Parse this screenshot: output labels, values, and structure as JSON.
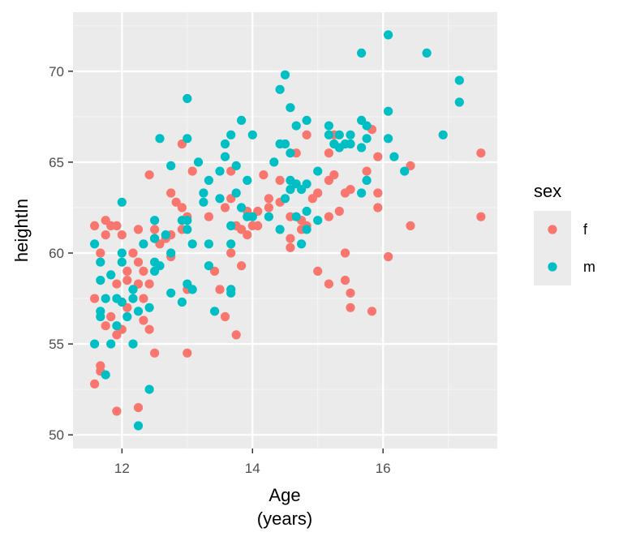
{
  "chart_data": {
    "type": "scatter",
    "xlabel": [
      "Age",
      "(years)"
    ],
    "ylabel": "heightIn",
    "xlim": [
      11.25,
      17.75
    ],
    "ylim": [
      49.25,
      73.25
    ],
    "x_ticks": [
      12,
      14,
      16
    ],
    "y_ticks": [
      50,
      55,
      60,
      65,
      70
    ],
    "grid": true,
    "legend": {
      "title": "sex",
      "position": "right"
    },
    "series": [
      {
        "name": "f",
        "color": "#F8766D",
        "points": [
          [
            11.58,
            52.8
          ],
          [
            11.58,
            57.5
          ],
          [
            11.58,
            61.5
          ],
          [
            11.67,
            53.5
          ],
          [
            11.67,
            53.8
          ],
          [
            11.67,
            60.0
          ],
          [
            11.75,
            56.0
          ],
          [
            11.75,
            61.0
          ],
          [
            11.75,
            61.8
          ],
          [
            11.83,
            56.5
          ],
          [
            11.83,
            61.5
          ],
          [
            11.92,
            51.3
          ],
          [
            11.92,
            55.5
          ],
          [
            11.92,
            58.3
          ],
          [
            11.92,
            61.5
          ],
          [
            12.0,
            55.8
          ],
          [
            12.0,
            61.0
          ],
          [
            12.08,
            57.0
          ],
          [
            12.08,
            58.5
          ],
          [
            12.08,
            59.0
          ],
          [
            12.17,
            60.0
          ],
          [
            12.25,
            51.5
          ],
          [
            12.25,
            58.3
          ],
          [
            12.25,
            59.5
          ],
          [
            12.25,
            61.3
          ],
          [
            12.33,
            56.3
          ],
          [
            12.33,
            57.5
          ],
          [
            12.33,
            59.0
          ],
          [
            12.42,
            55.8
          ],
          [
            12.42,
            58.3
          ],
          [
            12.42,
            64.3
          ],
          [
            12.5,
            54.5
          ],
          [
            12.5,
            60.8
          ],
          [
            12.5,
            61.3
          ],
          [
            12.58,
            60.5
          ],
          [
            12.67,
            60.8
          ],
          [
            12.75,
            59.8
          ],
          [
            12.75,
            61.0
          ],
          [
            12.75,
            63.3
          ],
          [
            12.83,
            62.8
          ],
          [
            12.92,
            61.3
          ],
          [
            12.92,
            62.5
          ],
          [
            12.92,
            66.0
          ],
          [
            13.0,
            54.5
          ],
          [
            13.0,
            58.0
          ],
          [
            13.0,
            62.0
          ],
          [
            13.08,
            64.5
          ],
          [
            13.33,
            62.0
          ],
          [
            13.42,
            59.0
          ],
          [
            13.5,
            58.0
          ],
          [
            13.58,
            56.5
          ],
          [
            13.58,
            62.5
          ],
          [
            13.67,
            60.0
          ],
          [
            13.67,
            63.0
          ],
          [
            13.67,
            64.5
          ],
          [
            13.75,
            55.5
          ],
          [
            13.75,
            61.5
          ],
          [
            13.83,
            59.3
          ],
          [
            13.83,
            61.3
          ],
          [
            13.92,
            61.0
          ],
          [
            13.92,
            62.3
          ],
          [
            14.0,
            61.5
          ],
          [
            14.08,
            61.5
          ],
          [
            14.08,
            62.3
          ],
          [
            14.17,
            64.3
          ],
          [
            14.25,
            62.5
          ],
          [
            14.25,
            63.0
          ],
          [
            14.42,
            62.8
          ],
          [
            14.42,
            64.0
          ],
          [
            14.58,
            60.3
          ],
          [
            14.58,
            60.8
          ],
          [
            14.58,
            62.0
          ],
          [
            14.67,
            65.5
          ],
          [
            14.75,
            61.3
          ],
          [
            14.75,
            61.8
          ],
          [
            14.83,
            61.5
          ],
          [
            14.83,
            66.5
          ],
          [
            14.92,
            63.0
          ],
          [
            15.0,
            59.0
          ],
          [
            15.0,
            63.3
          ],
          [
            15.17,
            58.3
          ],
          [
            15.17,
            62.0
          ],
          [
            15.17,
            64.0
          ],
          [
            15.17,
            65.5
          ],
          [
            15.25,
            64.3
          ],
          [
            15.25,
            66.5
          ],
          [
            15.33,
            62.3
          ],
          [
            15.42,
            58.5
          ],
          [
            15.42,
            60.0
          ],
          [
            15.42,
            63.3
          ],
          [
            15.5,
            57.0
          ],
          [
            15.5,
            57.8
          ],
          [
            15.5,
            63.5
          ],
          [
            15.75,
            64.5
          ],
          [
            15.83,
            56.8
          ],
          [
            15.83,
            66.8
          ],
          [
            15.92,
            62.5
          ],
          [
            15.92,
            63.3
          ],
          [
            15.92,
            65.3
          ],
          [
            16.08,
            59.8
          ],
          [
            16.42,
            61.5
          ],
          [
            16.42,
            64.8
          ],
          [
            17.5,
            62.0
          ],
          [
            17.5,
            65.5
          ]
        ]
      },
      {
        "name": "m",
        "color": "#00BFC4",
        "points": [
          [
            11.58,
            55.0
          ],
          [
            11.58,
            60.5
          ],
          [
            11.67,
            56.5
          ],
          [
            11.67,
            56.8
          ],
          [
            11.67,
            58.5
          ],
          [
            11.67,
            59.5
          ],
          [
            11.75,
            53.3
          ],
          [
            11.75,
            57.5
          ],
          [
            11.83,
            55.0
          ],
          [
            11.83,
            58.8
          ],
          [
            11.92,
            56.0
          ],
          [
            11.92,
            57.5
          ],
          [
            12.0,
            57.3
          ],
          [
            12.0,
            59.5
          ],
          [
            12.0,
            60.0
          ],
          [
            12.0,
            62.8
          ],
          [
            12.08,
            56.5
          ],
          [
            12.17,
            55.0
          ],
          [
            12.17,
            57.5
          ],
          [
            12.17,
            58.0
          ],
          [
            12.25,
            50.5
          ],
          [
            12.25,
            56.8
          ],
          [
            12.33,
            60.5
          ],
          [
            12.42,
            52.5
          ],
          [
            12.42,
            57.0
          ],
          [
            12.5,
            59.0
          ],
          [
            12.5,
            59.5
          ],
          [
            12.5,
            60.8
          ],
          [
            12.5,
            61.8
          ],
          [
            12.58,
            59.3
          ],
          [
            12.58,
            66.3
          ],
          [
            12.67,
            61.0
          ],
          [
            12.75,
            57.8
          ],
          [
            12.75,
            60.0
          ],
          [
            12.75,
            64.8
          ],
          [
            12.92,
            57.3
          ],
          [
            12.92,
            61.8
          ],
          [
            13.0,
            58.3
          ],
          [
            13.0,
            61.3
          ],
          [
            13.0,
            61.8
          ],
          [
            13.0,
            66.3
          ],
          [
            13.0,
            68.5
          ],
          [
            13.08,
            58.0
          ],
          [
            13.08,
            60.5
          ],
          [
            13.17,
            65.0
          ],
          [
            13.25,
            62.8
          ],
          [
            13.25,
            63.3
          ],
          [
            13.33,
            59.3
          ],
          [
            13.33,
            60.5
          ],
          [
            13.33,
            64.0
          ],
          [
            13.42,
            56.8
          ],
          [
            13.5,
            63.0
          ],
          [
            13.5,
            64.5
          ],
          [
            13.58,
            65.3
          ],
          [
            13.58,
            66.0
          ],
          [
            13.67,
            57.8
          ],
          [
            13.67,
            58.0
          ],
          [
            13.67,
            60.5
          ],
          [
            13.67,
            61.5
          ],
          [
            13.67,
            66.5
          ],
          [
            13.75,
            63.3
          ],
          [
            13.75,
            64.8
          ],
          [
            13.83,
            62.5
          ],
          [
            13.83,
            67.3
          ],
          [
            13.92,
            62.0
          ],
          [
            13.92,
            64.0
          ],
          [
            14.0,
            62.0
          ],
          [
            14.0,
            66.5
          ],
          [
            14.25,
            62.0
          ],
          [
            14.33,
            65.0
          ],
          [
            14.42,
            61.3
          ],
          [
            14.42,
            66.0
          ],
          [
            14.42,
            69.0
          ],
          [
            14.5,
            63.0
          ],
          [
            14.5,
            66.0
          ],
          [
            14.5,
            69.8
          ],
          [
            14.58,
            63.5
          ],
          [
            14.58,
            64.0
          ],
          [
            14.58,
            65.5
          ],
          [
            14.58,
            68.0
          ],
          [
            14.67,
            62.0
          ],
          [
            14.67,
            63.8
          ],
          [
            14.67,
            67.0
          ],
          [
            14.75,
            60.5
          ],
          [
            14.75,
            63.5
          ],
          [
            14.83,
            61.3
          ],
          [
            14.83,
            62.3
          ],
          [
            14.83,
            63.8
          ],
          [
            14.83,
            67.3
          ],
          [
            15.0,
            61.8
          ],
          [
            15.0,
            64.5
          ],
          [
            15.17,
            66.5
          ],
          [
            15.17,
            67.0
          ],
          [
            15.25,
            66.0
          ],
          [
            15.33,
            65.8
          ],
          [
            15.33,
            66.5
          ],
          [
            15.42,
            66.0
          ],
          [
            15.5,
            66.0
          ],
          [
            15.5,
            66.5
          ],
          [
            15.67,
            63.3
          ],
          [
            15.67,
            65.8
          ],
          [
            15.67,
            67.3
          ],
          [
            15.67,
            71.0
          ],
          [
            15.75,
            64.0
          ],
          [
            15.75,
            66.3
          ],
          [
            15.75,
            67.0
          ],
          [
            16.08,
            66.3
          ],
          [
            16.08,
            67.8
          ],
          [
            16.08,
            72.0
          ],
          [
            16.17,
            65.3
          ],
          [
            16.33,
            64.5
          ],
          [
            16.67,
            71.0
          ],
          [
            16.92,
            66.5
          ],
          [
            17.17,
            68.3
          ],
          [
            17.17,
            69.5
          ]
        ]
      }
    ]
  }
}
